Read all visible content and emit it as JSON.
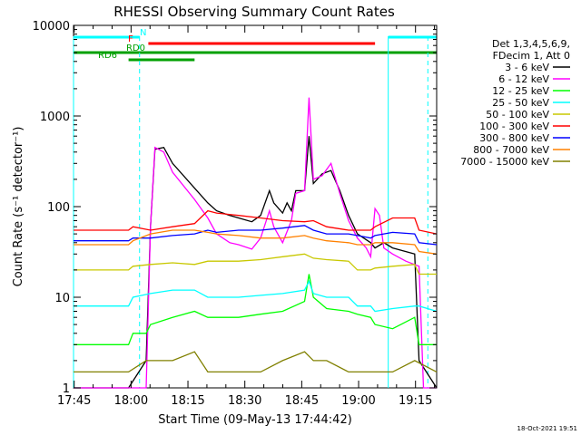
{
  "chart_data": {
    "type": "line",
    "title": "RHESSI Observing Summary Count Rates",
    "xlabel": "Start Time (09-May-13 17:44:42)",
    "ylabel": "Count Rate (s⁻¹ detector⁻¹)",
    "x_ticks": [
      "17:45",
      "18:00",
      "18:15",
      "18:30",
      "18:45",
      "19:00",
      "19:15"
    ],
    "y_ticks": [
      "1",
      "10",
      "100",
      "1000",
      "10000"
    ],
    "y_scale": "log",
    "ylim": [
      1,
      10000
    ],
    "xlim_minutes": [
      17.5,
      100
    ],
    "grid": false,
    "legend_placement": "right",
    "legend_header": [
      "Det 1,3,4,5,6,9,",
      "FDecim 1, Att 0"
    ],
    "series": [
      {
        "name": "3 - 6 keV",
        "color": "#000000",
        "points": [
          [
            17.5,
            1
          ],
          [
            30,
            1
          ],
          [
            34,
            2
          ],
          [
            35,
            60
          ],
          [
            36,
            430
          ],
          [
            38,
            450
          ],
          [
            40,
            300
          ],
          [
            45,
            160
          ],
          [
            48,
            110
          ],
          [
            50,
            90
          ],
          [
            53,
            80
          ],
          [
            55,
            75
          ],
          [
            58,
            68
          ],
          [
            60,
            80
          ],
          [
            62,
            150
          ],
          [
            63,
            110
          ],
          [
            65,
            85
          ],
          [
            66,
            110
          ],
          [
            67,
            90
          ],
          [
            68,
            150
          ],
          [
            70,
            150
          ],
          [
            71,
            600
          ],
          [
            72,
            180
          ],
          [
            74,
            230
          ],
          [
            76,
            250
          ],
          [
            78,
            150
          ],
          [
            80,
            80
          ],
          [
            82,
            50
          ],
          [
            85,
            40
          ],
          [
            86,
            35
          ],
          [
            88,
            40
          ],
          [
            90,
            35
          ],
          [
            95,
            30
          ],
          [
            96,
            2
          ],
          [
            100,
            1
          ]
        ]
      },
      {
        "name": "6 - 12 keV",
        "color": "#ff00ff",
        "points": [
          [
            17.5,
            1
          ],
          [
            34,
            1
          ],
          [
            35,
            60
          ],
          [
            36,
            450
          ],
          [
            38,
            400
          ],
          [
            40,
            240
          ],
          [
            45,
            120
          ],
          [
            48,
            75
          ],
          [
            50,
            50
          ],
          [
            53,
            40
          ],
          [
            55,
            38
          ],
          [
            58,
            34
          ],
          [
            60,
            45
          ],
          [
            62,
            90
          ],
          [
            63,
            60
          ],
          [
            65,
            40
          ],
          [
            67,
            70
          ],
          [
            68,
            140
          ],
          [
            70,
            150
          ],
          [
            71,
            1600
          ],
          [
            72,
            200
          ],
          [
            74,
            220
          ],
          [
            76,
            300
          ],
          [
            78,
            140
          ],
          [
            80,
            70
          ],
          [
            82,
            45
          ],
          [
            84,
            35
          ],
          [
            85,
            28
          ],
          [
            86,
            95
          ],
          [
            87,
            80
          ],
          [
            88,
            35
          ],
          [
            90,
            30
          ],
          [
            93,
            25
          ],
          [
            96,
            22
          ],
          [
            97,
            1
          ],
          [
            100,
            1
          ]
        ]
      },
      {
        "name": "12 - 25 keV",
        "color": "#00ff00",
        "points": [
          [
            17.5,
            3
          ],
          [
            30,
            3
          ],
          [
            31,
            4
          ],
          [
            34,
            4
          ],
          [
            35,
            5
          ],
          [
            40,
            6
          ],
          [
            45,
            7
          ],
          [
            48,
            6
          ],
          [
            50,
            6
          ],
          [
            55,
            6
          ],
          [
            60,
            6.5
          ],
          [
            65,
            7
          ],
          [
            70,
            9
          ],
          [
            71,
            18
          ],
          [
            72,
            10
          ],
          [
            75,
            7.5
          ],
          [
            80,
            7
          ],
          [
            82,
            6.5
          ],
          [
            85,
            6
          ],
          [
            86,
            5
          ],
          [
            90,
            4.5
          ],
          [
            95,
            6
          ],
          [
            96,
            3
          ],
          [
            100,
            3
          ]
        ]
      },
      {
        "name": "25 - 50 keV",
        "color": "#00ffff",
        "points": [
          [
            17.5,
            8
          ],
          [
            30,
            8
          ],
          [
            31,
            10
          ],
          [
            35,
            11
          ],
          [
            40,
            12
          ],
          [
            45,
            12
          ],
          [
            48,
            10
          ],
          [
            50,
            10
          ],
          [
            55,
            10
          ],
          [
            60,
            10.5
          ],
          [
            65,
            11
          ],
          [
            70,
            12
          ],
          [
            71,
            15
          ],
          [
            72,
            11
          ],
          [
            75,
            10
          ],
          [
            80,
            10
          ],
          [
            82,
            8
          ],
          [
            85,
            8
          ],
          [
            86,
            7
          ],
          [
            90,
            7.5
          ],
          [
            95,
            8
          ],
          [
            96,
            8
          ],
          [
            100,
            7
          ]
        ]
      },
      {
        "name": "50 - 100 keV",
        "color": "#c8c800",
        "points": [
          [
            17.5,
            20
          ],
          [
            30,
            20
          ],
          [
            31,
            22
          ],
          [
            35,
            23
          ],
          [
            40,
            24
          ],
          [
            45,
            23
          ],
          [
            48,
            25
          ],
          [
            50,
            25
          ],
          [
            55,
            25
          ],
          [
            60,
            26
          ],
          [
            65,
            28
          ],
          [
            70,
            30
          ],
          [
            72,
            27
          ],
          [
            75,
            26
          ],
          [
            80,
            25
          ],
          [
            82,
            20
          ],
          [
            85,
            20
          ],
          [
            86,
            21
          ],
          [
            90,
            22
          ],
          [
            95,
            23
          ],
          [
            96,
            18
          ],
          [
            100,
            18
          ]
        ]
      },
      {
        "name": "100 - 300 keV",
        "color": "#ff0000",
        "points": [
          [
            17.5,
            55
          ],
          [
            30,
            55
          ],
          [
            31,
            60
          ],
          [
            35,
            55
          ],
          [
            40,
            60
          ],
          [
            45,
            65
          ],
          [
            48,
            90
          ],
          [
            50,
            85
          ],
          [
            55,
            80
          ],
          [
            60,
            75
          ],
          [
            65,
            70
          ],
          [
            70,
            68
          ],
          [
            72,
            70
          ],
          [
            75,
            60
          ],
          [
            80,
            55
          ],
          [
            82,
            55
          ],
          [
            85,
            55
          ],
          [
            86,
            60
          ],
          [
            90,
            75
          ],
          [
            95,
            75
          ],
          [
            96,
            55
          ],
          [
            100,
            50
          ]
        ]
      },
      {
        "name": "300 - 800 keV",
        "color": "#0000ff",
        "points": [
          [
            17.5,
            42
          ],
          [
            30,
            42
          ],
          [
            31,
            45
          ],
          [
            35,
            45
          ],
          [
            40,
            48
          ],
          [
            45,
            50
          ],
          [
            48,
            55
          ],
          [
            50,
            52
          ],
          [
            55,
            55
          ],
          [
            60,
            55
          ],
          [
            65,
            58
          ],
          [
            70,
            62
          ],
          [
            72,
            55
          ],
          [
            75,
            50
          ],
          [
            80,
            50
          ],
          [
            82,
            48
          ],
          [
            85,
            45
          ],
          [
            86,
            48
          ],
          [
            90,
            52
          ],
          [
            95,
            50
          ],
          [
            96,
            40
          ],
          [
            100,
            38
          ]
        ]
      },
      {
        "name": "800 - 7000 keV",
        "color": "#ff8000",
        "points": [
          [
            17.5,
            38
          ],
          [
            30,
            38
          ],
          [
            31,
            42
          ],
          [
            35,
            50
          ],
          [
            40,
            55
          ],
          [
            45,
            55
          ],
          [
            48,
            52
          ],
          [
            50,
            50
          ],
          [
            55,
            48
          ],
          [
            60,
            45
          ],
          [
            65,
            45
          ],
          [
            70,
            48
          ],
          [
            72,
            45
          ],
          [
            75,
            42
          ],
          [
            80,
            40
          ],
          [
            82,
            38
          ],
          [
            85,
            38
          ],
          [
            86,
            40
          ],
          [
            90,
            40
          ],
          [
            95,
            38
          ],
          [
            96,
            32
          ],
          [
            100,
            30
          ]
        ]
      },
      {
        "name": "7000 - 15000 keV",
        "color": "#808000",
        "points": [
          [
            17.5,
            1.5
          ],
          [
            30,
            1.5
          ],
          [
            34,
            2
          ],
          [
            40,
            2
          ],
          [
            45,
            2.5
          ],
          [
            48,
            1.5
          ],
          [
            55,
            1.5
          ],
          [
            60,
            1.5
          ],
          [
            65,
            2
          ],
          [
            70,
            2.5
          ],
          [
            72,
            2
          ],
          [
            75,
            2
          ],
          [
            80,
            1.5
          ],
          [
            85,
            1.5
          ],
          [
            90,
            1.5
          ],
          [
            95,
            2
          ],
          [
            100,
            1.5
          ]
        ]
      }
    ],
    "flags": [
      {
        "label": "N",
        "color": "#00ffff",
        "segments": [
          [
            17.5,
            32.5
          ],
          [
            89,
            100
          ]
        ]
      },
      {
        "label": "F",
        "color": "#ff0000",
        "segments": [
          [
            34.5,
            86
          ]
        ]
      },
      {
        "label": "RD0",
        "color": "#00a000",
        "segments": [
          [
            17.5,
            100
          ]
        ]
      },
      {
        "label": "RD6",
        "color": "#00a000",
        "segments": [
          [
            30,
            45
          ]
        ]
      }
    ],
    "vertical_markers": [
      {
        "x": 17.5,
        "color": "#00ffff",
        "style": "solid"
      },
      {
        "x": 32.5,
        "color": "#00ffff",
        "style": "dashed"
      },
      {
        "x": 89,
        "color": "#00ffff",
        "style": "solid"
      },
      {
        "x": 98,
        "color": "#00ffff",
        "style": "dashed"
      }
    ]
  },
  "footer": {
    "timestamp": "18-Oct-2021 19:51"
  }
}
